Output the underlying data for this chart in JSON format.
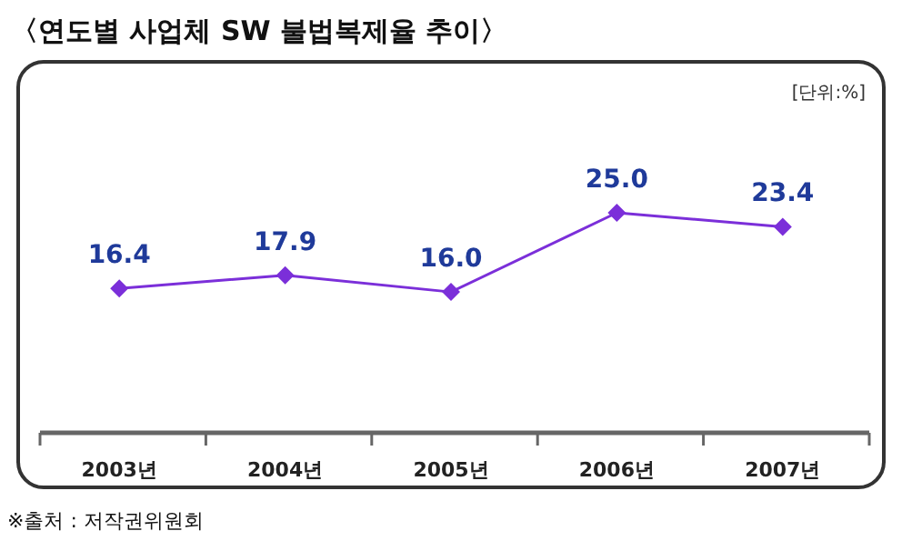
{
  "chart_data": {
    "type": "line",
    "title": "〈연도별 사업체 SW 불법복제율 추이〉",
    "categories": [
      "2003년",
      "2004년",
      "2005년",
      "2006년",
      "2007년"
    ],
    "series": [
      {
        "color": "#7b2fd9",
        "values": [
          16.4,
          17.9,
          16.0,
          25.0,
          23.4
        ],
        "value_labels": [
          "16.4",
          "17.9",
          "16.0",
          "25.0",
          "23.4"
        ]
      }
    ],
    "marker": "diamond",
    "line_style": "solid",
    "grid": false,
    "annotations": [
      "[단위:%]",
      "※출처 : 저작권위원회"
    ]
  }
}
